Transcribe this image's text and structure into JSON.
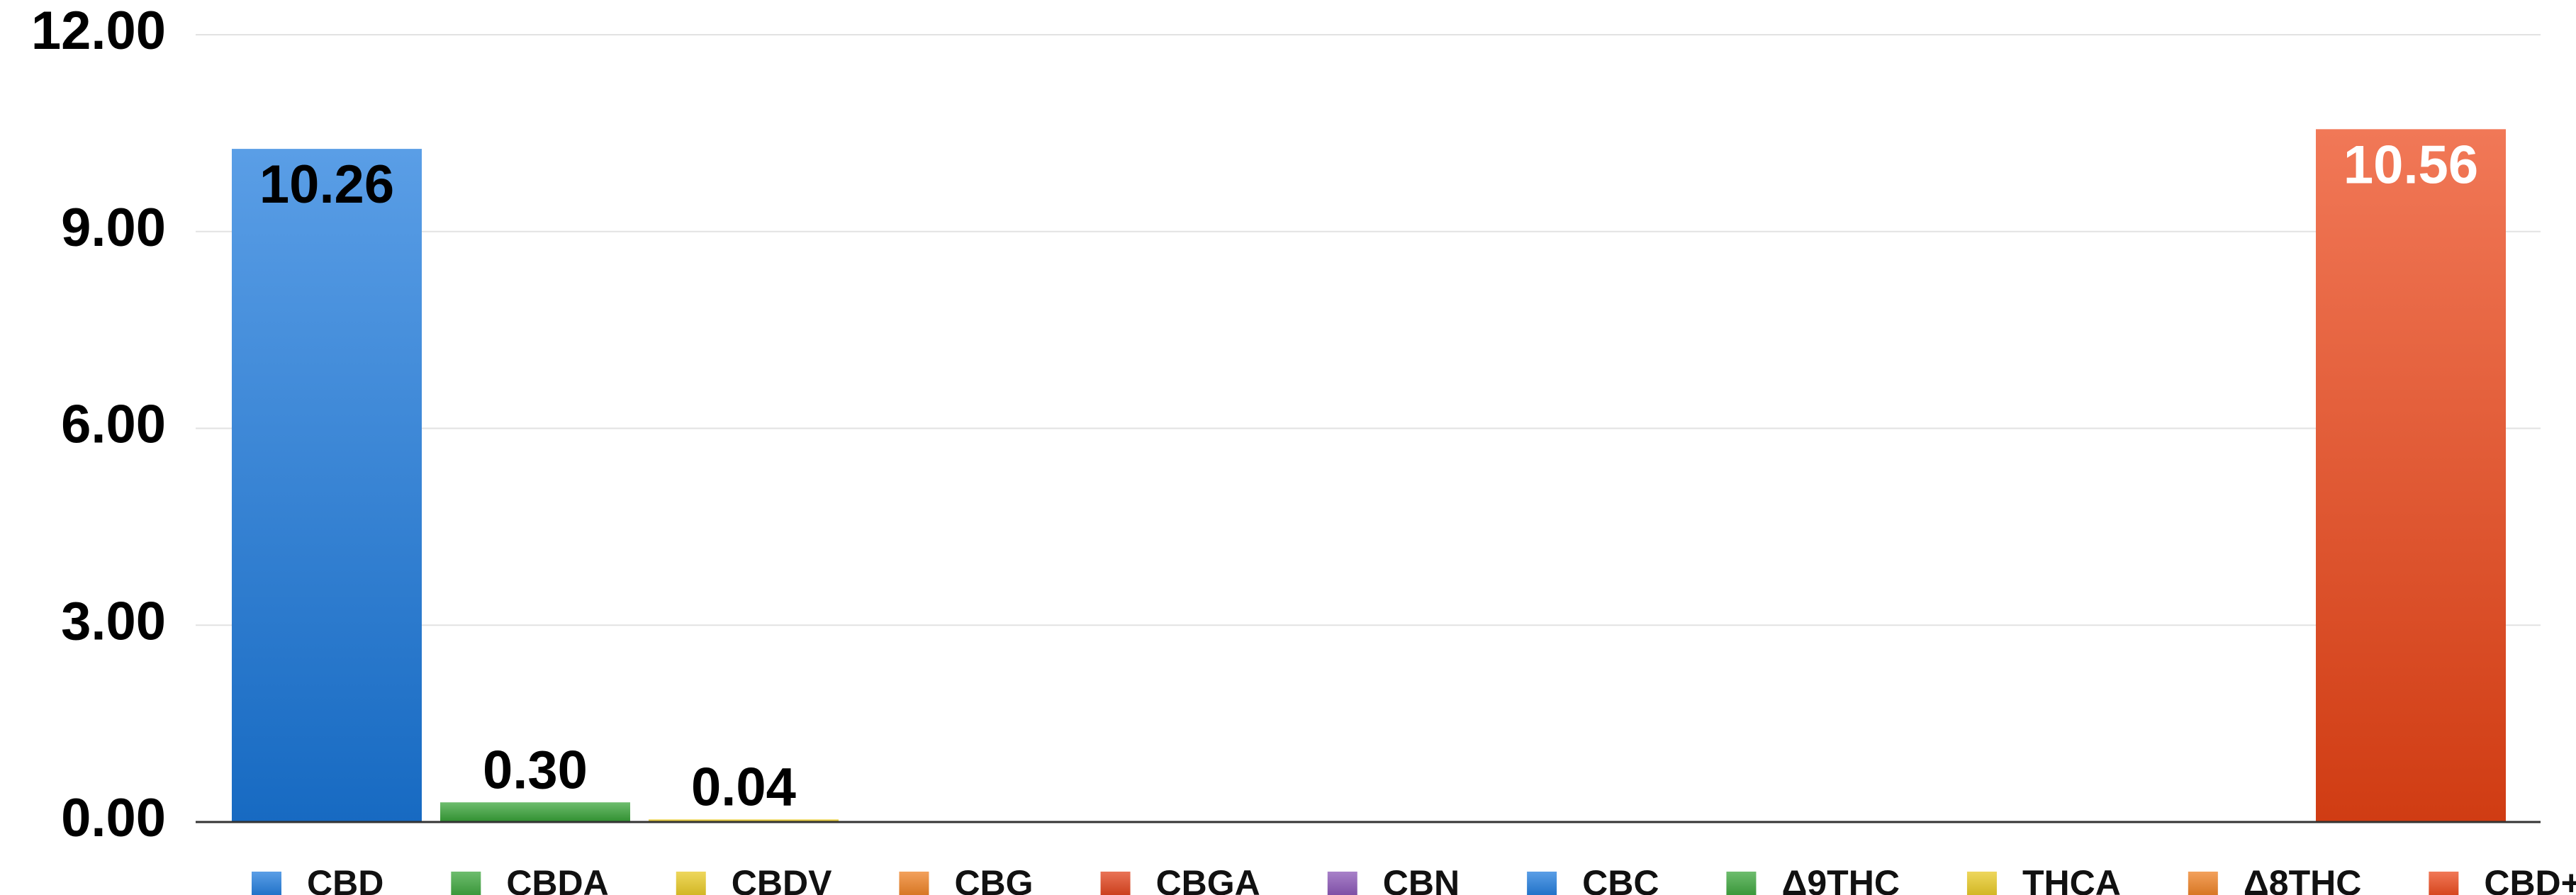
{
  "chart_data": {
    "type": "bar",
    "categories": [
      "CBD",
      "CBDA",
      "CBDV",
      "CBG",
      "CBGA",
      "CBN",
      "CBC",
      "Δ9THC",
      "THCA",
      "Δ8THC",
      "CBD+CBDA"
    ],
    "values": [
      10.26,
      0.3,
      0.04,
      0,
      0,
      0,
      0,
      0,
      0,
      0,
      10.56
    ],
    "value_labels": [
      "10.26",
      "0.30",
      "0.04",
      null,
      null,
      null,
      null,
      null,
      null,
      null,
      "10.56"
    ],
    "value_label_colors": [
      "#000000",
      "#000000",
      "#000000",
      null,
      null,
      null,
      null,
      null,
      null,
      null,
      "#ffffff"
    ],
    "colors": [
      "#1a78dc",
      "#36a336",
      "#e8c81e",
      "#ee7d1c",
      "#e03c14",
      "#8650b4",
      "#1a78dc",
      "#36a336",
      "#e8c81e",
      "#ee7d1c",
      "#ec4416"
    ],
    "ylim": [
      0,
      12
    ],
    "yticks": [
      {
        "value": 0,
        "label": "0.00"
      },
      {
        "value": 3,
        "label": "3.00"
      },
      {
        "value": 6,
        "label": "6.00"
      },
      {
        "value": 9,
        "label": "9.00"
      },
      {
        "value": 12,
        "label": "12.00"
      }
    ],
    "grid": true,
    "legend": "bottom"
  }
}
